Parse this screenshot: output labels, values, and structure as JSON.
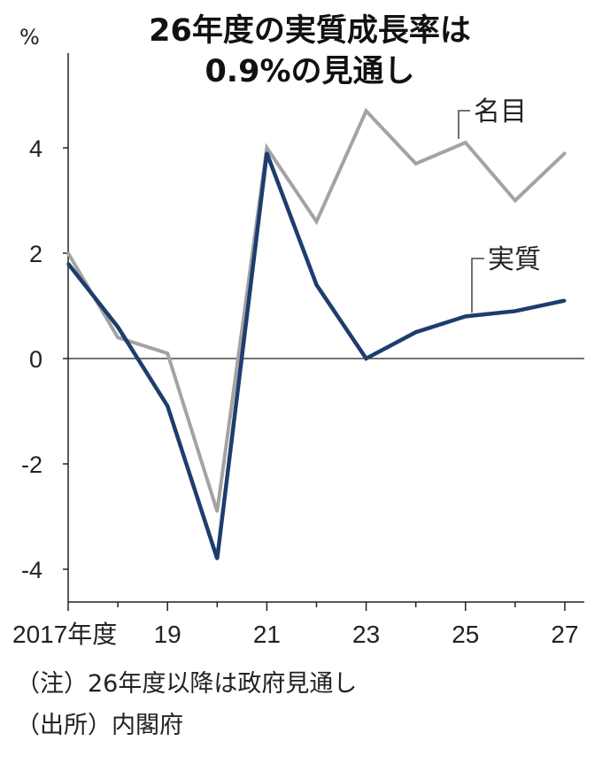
{
  "chart_data": {
    "type": "line",
    "title": "26年度の実質成長率は",
    "subtitle": "0.9%の見通し",
    "unit": "%",
    "x": [
      2017,
      2018,
      2019,
      2020,
      2021,
      2022,
      2023,
      2024,
      2025,
      2026,
      2027
    ],
    "x_tick_labels": [
      {
        "x": 2017,
        "label": "2017年度"
      },
      {
        "x": 2019,
        "label": "19"
      },
      {
        "x": 2021,
        "label": "21"
      },
      {
        "x": 2023,
        "label": "23"
      },
      {
        "x": 2025,
        "label": "25"
      },
      {
        "x": 2027,
        "label": "27"
      }
    ],
    "y_ticks": [
      4,
      2,
      0,
      -2,
      -4
    ],
    "y_tick_labels": [
      "4",
      "2",
      "0",
      "-2",
      "-4"
    ],
    "ylim": [
      -4.2,
      5.4
    ],
    "grid": false,
    "zero_line": true,
    "series": [
      {
        "name": "名目",
        "color": "#a3a3a3",
        "values": [
          2.0,
          0.4,
          0.1,
          -2.9,
          4.0,
          2.6,
          4.7,
          3.7,
          4.1,
          3.0,
          3.9
        ]
      },
      {
        "name": "実質",
        "color": "#1c3d6e",
        "values": [
          1.8,
          0.6,
          -0.9,
          -3.8,
          3.9,
          1.4,
          0.0,
          0.5,
          0.8,
          0.9,
          1.1
        ]
      }
    ],
    "legend": "inline labels"
  },
  "notes": {
    "note1": "（注）26年度以降は政府見通し",
    "source": "（出所）内閣府"
  }
}
